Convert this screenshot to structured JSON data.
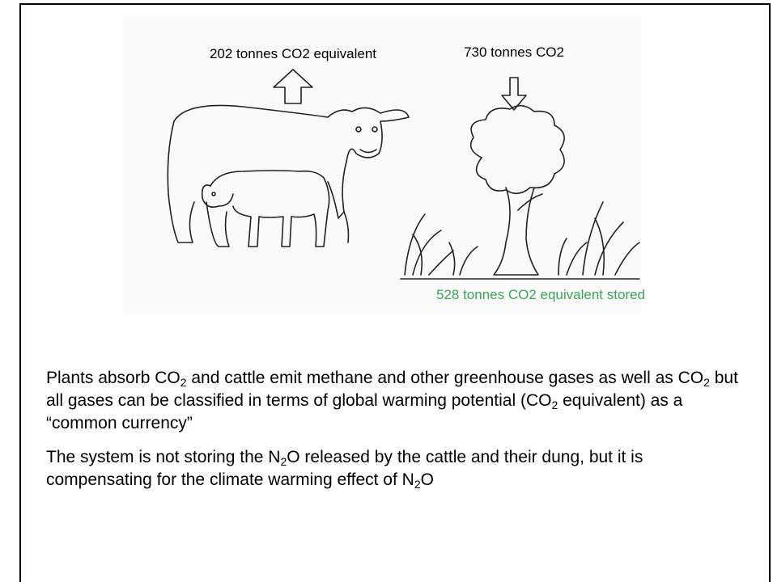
{
  "labels": {
    "emitted": "202 tonnes CO2 equivalent",
    "absorbed": "730 tonnes CO2",
    "stored": "528 tonnes CO2 equivalent stored"
  },
  "paragraphs": [
    {
      "parts": [
        {
          "text": "Plants absorb CO"
        },
        {
          "sub": "2"
        },
        {
          "text": " and cattle emit methane and other greenhouse gases as well as CO"
        },
        {
          "sub": "2"
        },
        {
          "text": " but all gases can be classified in terms of global warming potential (CO"
        },
        {
          "sub": "2"
        },
        {
          "text": " equivalent) as a “common currency”"
        }
      ]
    },
    {
      "parts": [
        {
          "text": "The system is not storing the N"
        },
        {
          "sub": "2"
        },
        {
          "text": "O released by the cattle and their dung, but it is compensating for the climate warming effect of N"
        },
        {
          "sub": "2"
        },
        {
          "text": "O"
        }
      ]
    }
  ]
}
